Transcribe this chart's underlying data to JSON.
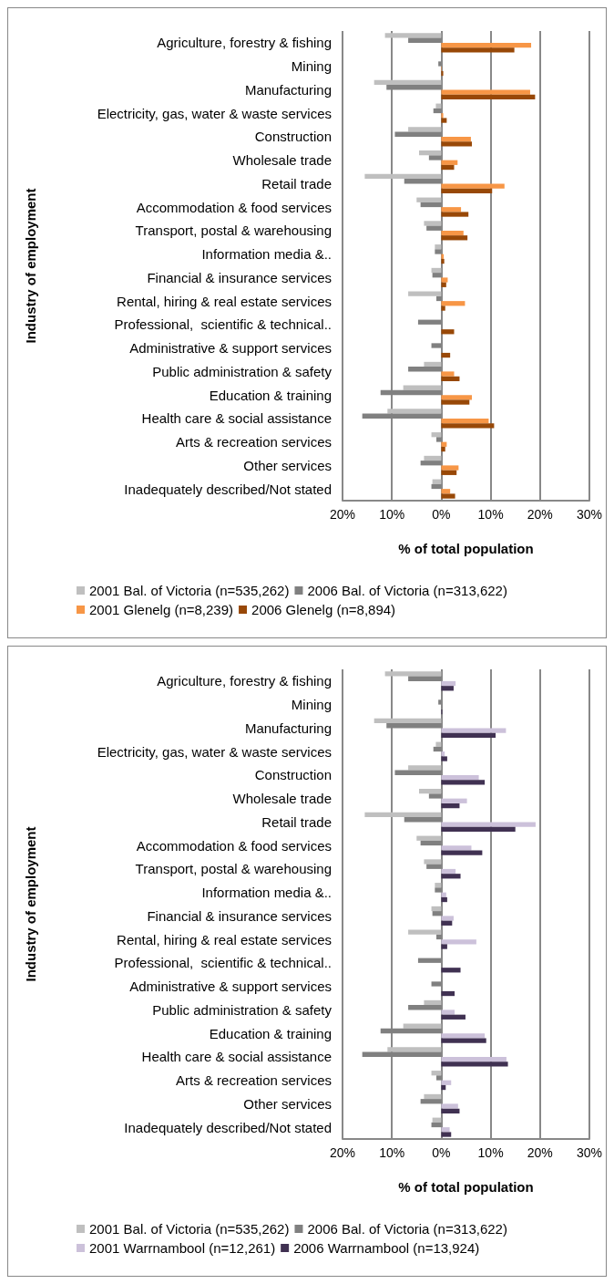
{
  "chart_data": [
    {
      "type": "bar",
      "orientation": "horizontal",
      "xlabel": "% of total population",
      "ylabel": "Industry of employment",
      "categories": [
        "Agriculture, forestry & fishing",
        "Mining",
        "Manufacturing",
        "Electricity, gas, water & waste services",
        "Construction",
        "Wholesale trade",
        "Retail trade",
        "Accommodation & food services",
        "Transport, postal & warehousing",
        "Information media &..",
        "Financial & insurance services",
        "Rental, hiring & real estate services",
        "Professional,  scientific & technical..",
        "Administrative & support services",
        "Public administration & safety",
        "Education & training",
        "Health care & social assistance",
        "Arts & recreation services",
        "Other services",
        "Inadequately described/Not stated"
      ],
      "series": [
        {
          "name": "2001 Bal. of Victoria (n=535,262)",
          "color": "#bfbfbf",
          "values": [
            -11.4,
            null,
            -13.6,
            -1.1,
            -6.7,
            -4.5,
            -15.5,
            -5.0,
            -3.5,
            -1.3,
            -2.0,
            -6.7,
            null,
            null,
            -3.5,
            -7.7,
            -10.9,
            -2.0,
            -3.5,
            -1.8
          ]
        },
        {
          "name": "2006 Bal. of Victoria (n=313,622)",
          "color": "#808080",
          "values": [
            -6.7,
            -0.6,
            -11.1,
            -1.6,
            -9.4,
            -2.5,
            -7.5,
            -4.2,
            -3.0,
            -1.3,
            -1.8,
            -1.0,
            -4.7,
            -2.0,
            -6.7,
            -12.3,
            -16.0,
            -1.0,
            -4.2,
            -2.0
          ]
        },
        {
          "name": "2001 Glenelg (n=8,239)",
          "color": "#f79646",
          "values": [
            18.2,
            0.1,
            18.0,
            0.4,
            6.0,
            3.3,
            12.8,
            4.0,
            4.5,
            0.5,
            1.3,
            4.8,
            null,
            null,
            2.6,
            6.2,
            9.6,
            1.1,
            3.5,
            1.8
          ]
        },
        {
          "name": "2006 Glenelg (n=8,894)",
          "color": "#984807",
          "values": [
            14.8,
            0.4,
            19.0,
            1.1,
            6.2,
            2.6,
            10.3,
            5.5,
            5.3,
            0.6,
            1.0,
            0.8,
            2.6,
            1.8,
            3.7,
            5.7,
            10.7,
            0.8,
            3.1,
            2.8
          ]
        }
      ],
      "xlim": [
        -20,
        30
      ],
      "xticks": [
        {
          "value": -20,
          "label": "20%"
        },
        {
          "value": -10,
          "label": "10%"
        },
        {
          "value": 0,
          "label": "0%"
        },
        {
          "value": 10,
          "label": "10%"
        },
        {
          "value": 20,
          "label": "20%"
        },
        {
          "value": 30,
          "label": "30%"
        }
      ],
      "grid": "x",
      "legend": "bottom"
    },
    {
      "type": "bar",
      "orientation": "horizontal",
      "xlabel": "% of total population",
      "ylabel": "Industry of employment",
      "categories": [
        "Agriculture, forestry & fishing",
        "Mining",
        "Manufacturing",
        "Electricity, gas, water & waste services",
        "Construction",
        "Wholesale trade",
        "Retail trade",
        "Accommodation & food services",
        "Transport, postal & warehousing",
        "Information media &..",
        "Financial & insurance services",
        "Rental, hiring & real estate services",
        "Professional,  scientific & technical..",
        "Administrative & support services",
        "Public administration & safety",
        "Education & training",
        "Health care & social assistance",
        "Arts & recreation services",
        "Other services",
        "Inadequately described/Not stated"
      ],
      "series": [
        {
          "name": "2001 Bal. of Victoria (n=535,262)",
          "color": "#bfbfbf",
          "values": [
            -11.4,
            null,
            -13.6,
            -1.1,
            -6.7,
            -4.5,
            -15.5,
            -5.0,
            -3.5,
            -1.3,
            -2.0,
            -6.7,
            null,
            null,
            -3.5,
            -7.7,
            -10.9,
            -2.0,
            -3.5,
            -1.8
          ]
        },
        {
          "name": "2006 Bal. of Victoria (n=313,622)",
          "color": "#808080",
          "values": [
            -6.7,
            -0.6,
            -11.1,
            -1.6,
            -9.4,
            -2.5,
            -7.5,
            -4.2,
            -3.0,
            -1.3,
            -1.8,
            -1.0,
            -4.7,
            -2.0,
            -6.7,
            -12.3,
            -16.0,
            -1.0,
            -4.2,
            -2.0
          ]
        },
        {
          "name": "2001 Warrnambool (n=12,261)",
          "color": "#ccc1da",
          "values": [
            2.9,
            null,
            13.1,
            0.7,
            7.6,
            5.2,
            19.1,
            6.1,
            2.9,
            1.0,
            2.5,
            7.1,
            null,
            null,
            2.7,
            8.8,
            13.2,
            2.0,
            3.4,
            1.7
          ]
        },
        {
          "name": "2006 Warrnambool (n=13,924)",
          "color": "#403152",
          "values": [
            2.5,
            0.2,
            11.0,
            1.2,
            8.8,
            3.7,
            15.0,
            8.3,
            3.9,
            1.2,
            2.2,
            1.2,
            3.9,
            2.7,
            4.9,
            9.1,
            13.5,
            0.9,
            3.7,
            2.0
          ]
        }
      ],
      "xlim": [
        -20,
        30
      ],
      "xticks": [
        {
          "value": -20,
          "label": "20%"
        },
        {
          "value": -10,
          "label": "10%"
        },
        {
          "value": 0,
          "label": "0%"
        },
        {
          "value": 10,
          "label": "10%"
        },
        {
          "value": 20,
          "label": "20%"
        },
        {
          "value": 30,
          "label": "30%"
        }
      ],
      "grid": "x",
      "legend": "bottom"
    }
  ]
}
